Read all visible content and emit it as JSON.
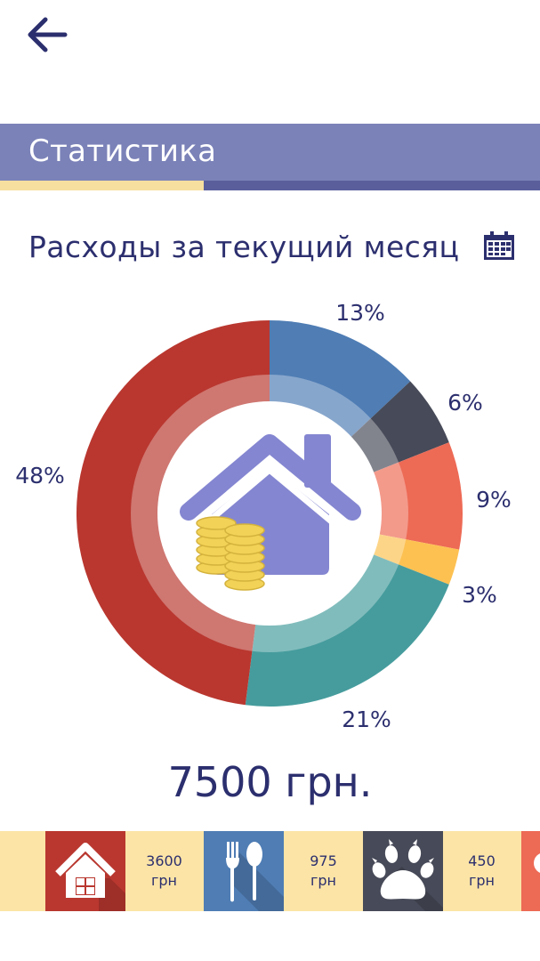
{
  "nav": {
    "back_icon": "arrow-left-icon"
  },
  "header": {
    "title": "Статистика",
    "progress_fraction": 0.377
  },
  "section": {
    "title": "Расходы за текущий месяц",
    "calendar_icon": "calendar-icon"
  },
  "chart_data": {
    "type": "pie",
    "center_icon": "house-with-coins-icon",
    "slices": [
      {
        "label": "13%",
        "value": 13,
        "color": "#4f7db4"
      },
      {
        "label": "6%",
        "value": 6,
        "color": "#474a58"
      },
      {
        "label": "9%",
        "value": 9,
        "color": "#ed6a55"
      },
      {
        "label": "3%",
        "value": 3,
        "color": "#fdc152"
      },
      {
        "label": "21%",
        "value": 21,
        "color": "#469c9d"
      },
      {
        "label": "48%",
        "value": 48,
        "color": "#b9372f"
      }
    ]
  },
  "total": {
    "text": "7500 грн."
  },
  "categories": [
    {
      "icon": "home-icon",
      "color": "#b9372f",
      "amount": "3600",
      "unit": "грн"
    },
    {
      "icon": "fork-spoon-icon",
      "color": "#4f7db4",
      "amount": "975",
      "unit": "грн"
    },
    {
      "icon": "paw-icon",
      "color": "#474a58",
      "amount": "450",
      "unit": "грн"
    },
    {
      "icon": "partial-icon",
      "color": "#ed6a55"
    }
  ]
}
